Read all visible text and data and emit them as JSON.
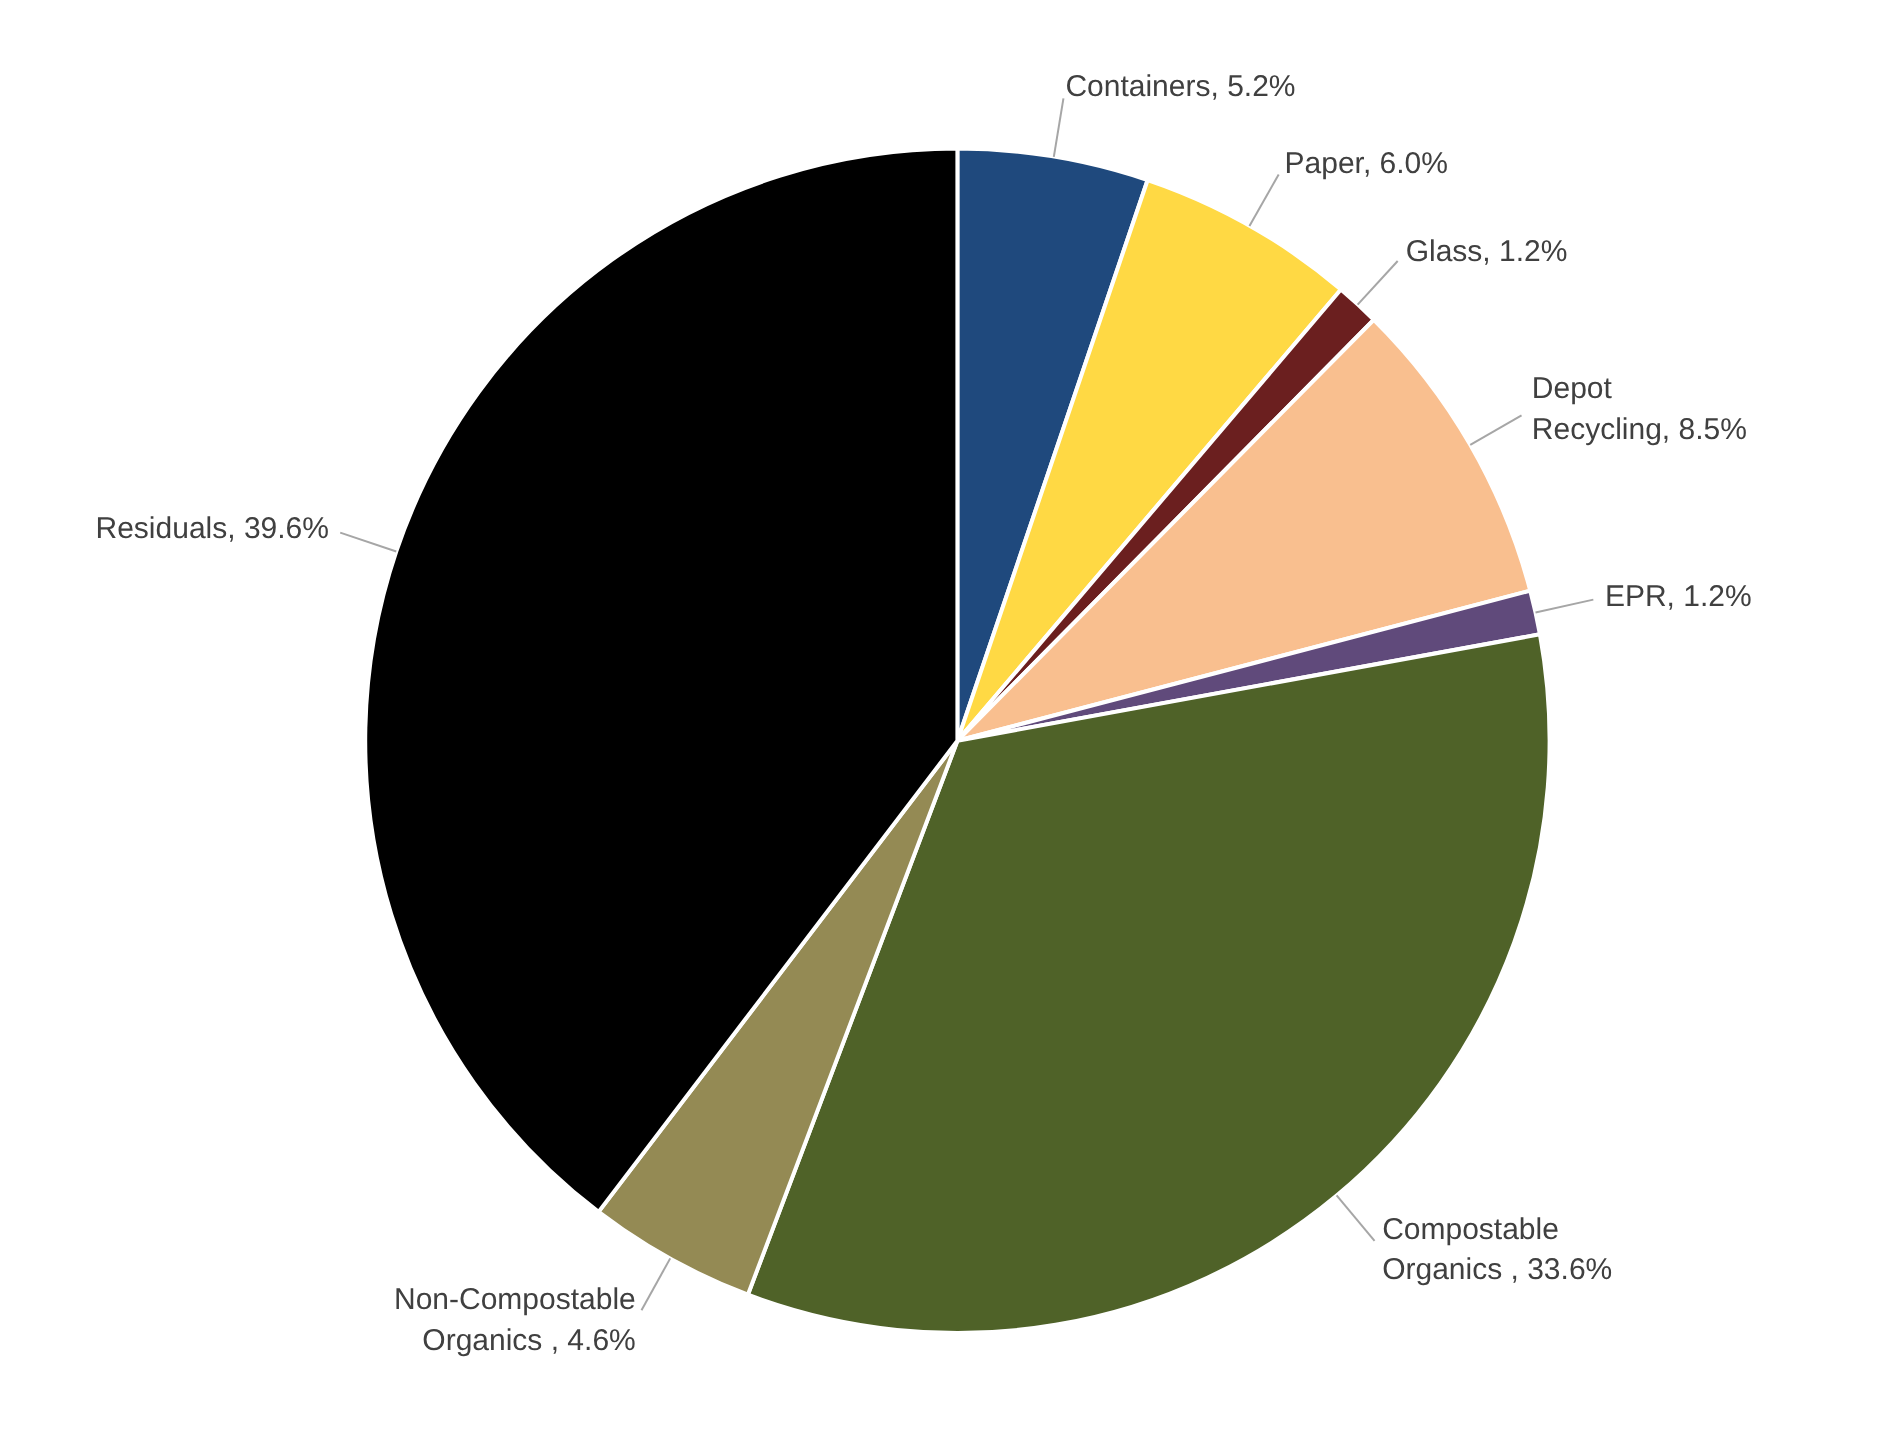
{
  "chart_data": {
    "type": "pie",
    "categories": [
      "Containers",
      "Paper",
      "Glass",
      "Depot Recycling",
      "EPR",
      "Compostable Organics ",
      "Non-Compostable Organics ",
      "Residuals"
    ],
    "values": [
      5.2,
      6.0,
      1.2,
      8.5,
      1.2,
      33.6,
      4.6,
      39.6
    ],
    "value_labels": [
      ", 5.2%",
      ", 6.0%",
      ", 1.2%",
      ", 8.5%",
      ", 1.2%",
      ", 33.6%",
      ", 4.6%",
      ", 39.6%"
    ],
    "colors": [
      "#1f497d",
      "#ffd944",
      "#6b1f1f",
      "#f9bf8f",
      "#604a7b",
      "#4f6228",
      "#948a54",
      "#000000"
    ]
  }
}
